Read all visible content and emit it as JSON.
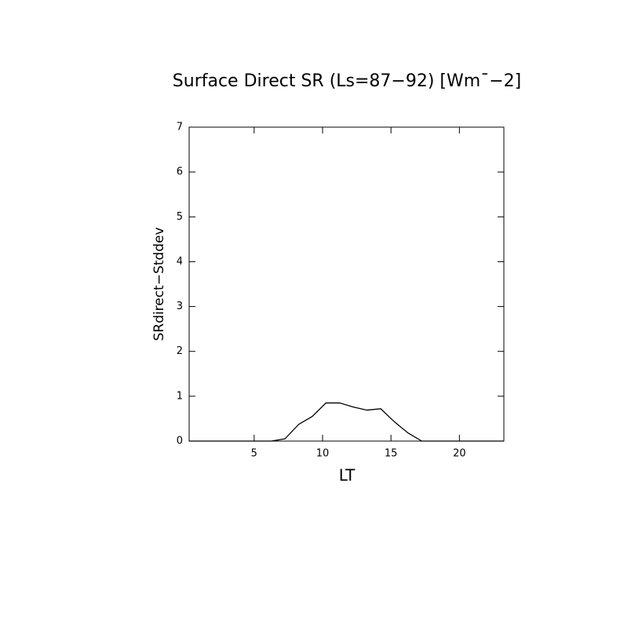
{
  "chart_data": {
    "type": "line",
    "title": "Surface Direct SR (Ls=87−92) [Wm¯−2]",
    "x_label": "LT",
    "y_label": "SRdirect−Stddev",
    "x": [
      0.25,
      1.25,
      2.25,
      3.25,
      4.25,
      5.25,
      6.25,
      7.25,
      8.25,
      9.25,
      10.25,
      11.25,
      12.25,
      13.25,
      14.25,
      15.25,
      16.25,
      17.25,
      18.25,
      19.25,
      20.25,
      21.25,
      22.25,
      23.25
    ],
    "series": [
      {
        "color": "#000000",
        "values": [
          0,
          0,
          0,
          0,
          0,
          0,
          0,
          0.05,
          0.37,
          0.55,
          0.85,
          0.85,
          0.76,
          0.69,
          0.72,
          0.43,
          0.18,
          0,
          0,
          0,
          0,
          0,
          0,
          0
        ]
      }
    ],
    "xlim": [
      0.25,
      23.25
    ],
    "xticks": [
      5,
      10,
      15,
      20
    ],
    "ylim": [
      0,
      7
    ],
    "yticks": [
      0,
      1,
      2,
      3,
      4,
      5,
      6,
      7
    ]
  }
}
